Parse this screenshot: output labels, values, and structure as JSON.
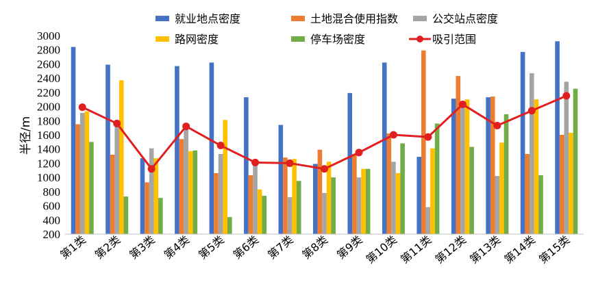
{
  "chart_data": {
    "type": "bar",
    "title": "",
    "xlabel": "",
    "ylabel": "半径/m",
    "ylim": [
      200,
      3000
    ],
    "y_ticks": [
      200,
      400,
      600,
      800,
      1000,
      1200,
      1400,
      1600,
      1800,
      2000,
      2200,
      2400,
      2600,
      2800,
      3000
    ],
    "grid": false,
    "legend_position": "top",
    "categories": [
      "第1类",
      "第2类",
      "第3类",
      "第4类",
      "第5类",
      "第6类",
      "第7类",
      "第8类",
      "第9类",
      "第10类",
      "第11类",
      "第12类",
      "第13类",
      "第14类",
      "第15类"
    ],
    "series": [
      {
        "name": "就业地点密度",
        "type": "bar",
        "color": "#4472C4",
        "values": [
          2840,
          2590,
          1270,
          2570,
          2620,
          2130,
          1740,
          1190,
          2190,
          2620,
          1290,
          2110,
          2130,
          2770,
          2920
        ]
      },
      {
        "name": "土地混合使用指数",
        "type": "bar",
        "color": "#ED7D31",
        "values": [
          1750,
          1320,
          930,
          1540,
          1060,
          1030,
          1280,
          1390,
          1330,
          1620,
          2790,
          2430,
          2140,
          1330,
          1600
        ]
      },
      {
        "name": "公交站点密度",
        "type": "bar",
        "color": "#A5A5A5",
        "values": [
          1910,
          1800,
          1410,
          1700,
          1330,
          1250,
          720,
          780,
          1000,
          1220,
          580,
          2010,
          1020,
          2470,
          2350
        ]
      },
      {
        "name": "路网密度",
        "type": "bar",
        "color": "#FFC000",
        "values": [
          1930,
          2370,
          1270,
          1370,
          1810,
          830,
          1260,
          1220,
          1120,
          1060,
          1410,
          2100,
          1490,
          2100,
          1630
        ]
      },
      {
        "name": "停车场密度",
        "type": "bar",
        "color": "#70AD47",
        "values": [
          1500,
          730,
          710,
          1380,
          440,
          740,
          950,
          1000,
          1120,
          1480,
          1760,
          1430,
          1890,
          1030,
          2250
        ]
      },
      {
        "name": "吸引范围",
        "type": "line",
        "color": "#E02020",
        "values": [
          1990,
          1760,
          1120,
          1720,
          1450,
          1210,
          1200,
          1120,
          1350,
          1600,
          1570,
          2030,
          1730,
          1940,
          2150
        ]
      }
    ]
  }
}
